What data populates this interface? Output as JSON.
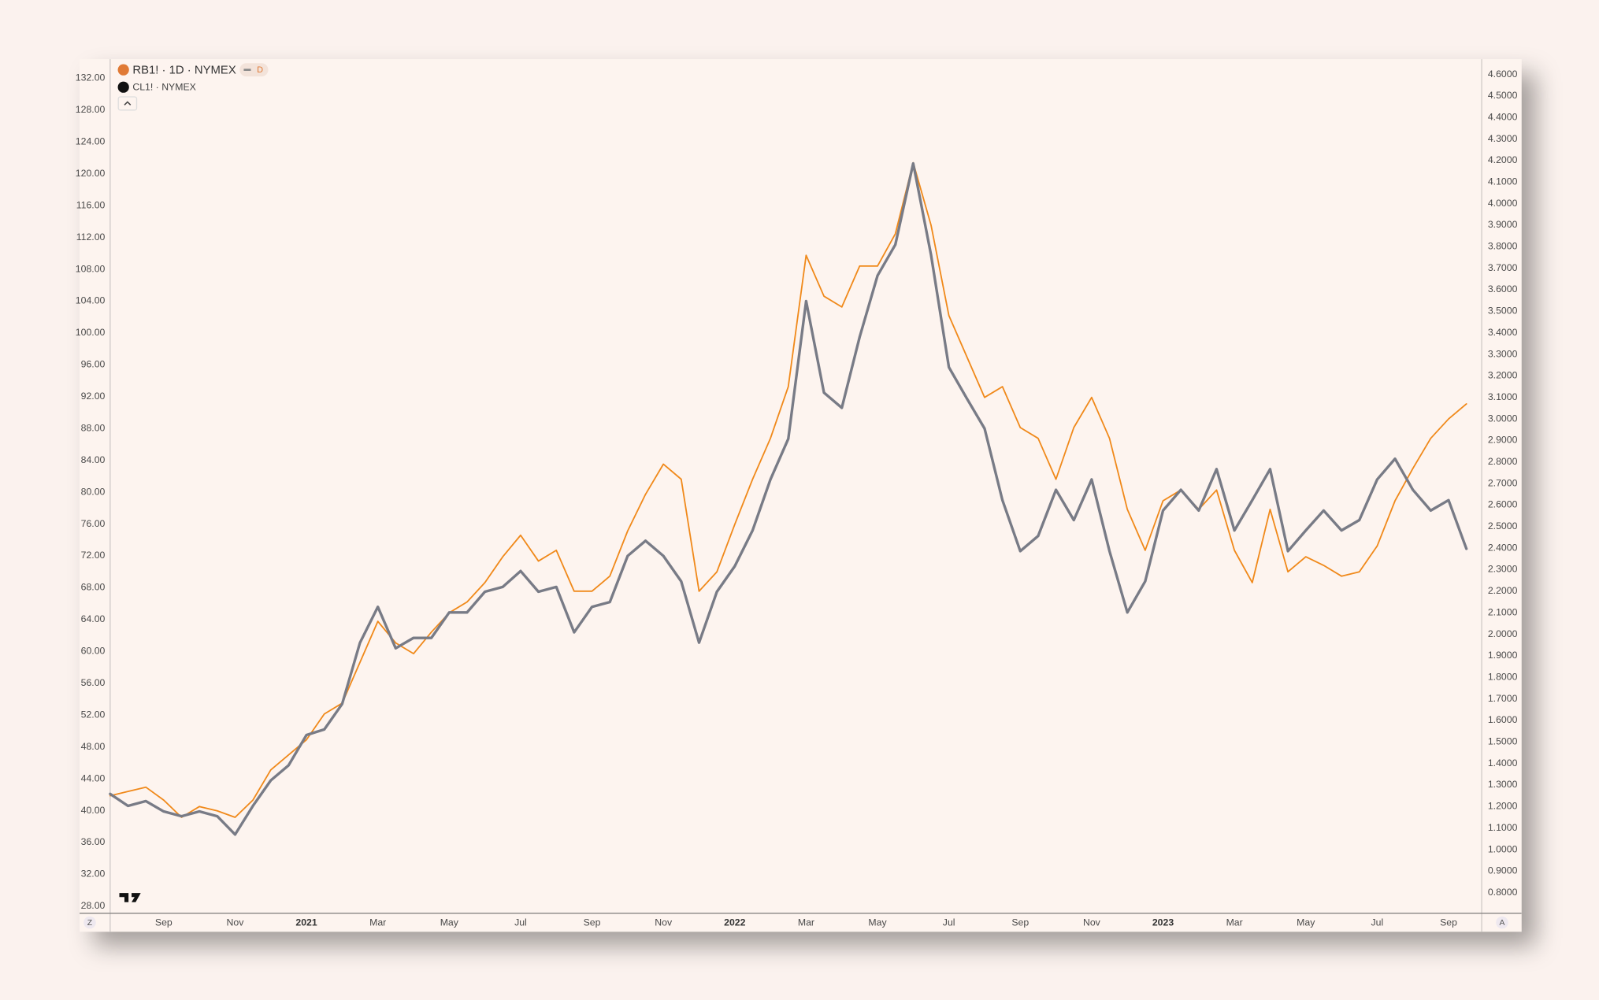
{
  "toolbar": {
    "interval_badge": "D",
    "scale_left": "Z",
    "scale_right": "A"
  },
  "chart_data": {
    "type": "line",
    "grid": false,
    "categories": [
      null,
      null,
      null,
      "Sep",
      null,
      null,
      null,
      "Nov",
      null,
      null,
      null,
      "2021",
      null,
      null,
      null,
      "Mar",
      null,
      null,
      null,
      "May",
      null,
      null,
      null,
      "Jul",
      null,
      null,
      null,
      "Sep",
      null,
      null,
      null,
      "Nov",
      null,
      null,
      null,
      "2022",
      null,
      null,
      null,
      "Mar",
      null,
      null,
      null,
      "May",
      null,
      null,
      null,
      "Jul",
      null,
      null,
      null,
      "Sep",
      null,
      null,
      null,
      "Nov",
      null,
      null,
      null,
      "2023",
      null,
      null,
      null,
      "Mar",
      null,
      null,
      null,
      "May",
      null,
      null,
      null,
      "Jul",
      null,
      null,
      null,
      "Sep",
      null
    ],
    "series": [
      {
        "name": "RB1! · 1D · NYMEX",
        "color": "#f0891a",
        "axis": "y2",
        "values": [
          1.25,
          1.27,
          1.29,
          1.23,
          1.15,
          1.2,
          1.18,
          1.15,
          1.23,
          1.37,
          1.44,
          1.51,
          1.63,
          1.68,
          1.87,
          2.06,
          1.96,
          1.91,
          2.01,
          2.1,
          2.15,
          2.24,
          2.36,
          2.46,
          2.34,
          2.39,
          2.2,
          2.2,
          2.27,
          2.48,
          2.65,
          2.79,
          2.72,
          2.2,
          2.29,
          2.51,
          2.72,
          2.91,
          3.15,
          3.76,
          3.57,
          3.52,
          3.71,
          3.71,
          3.86,
          4.19,
          3.9,
          3.48,
          3.29,
          3.1,
          3.15,
          2.96,
          2.91,
          2.72,
          2.96,
          3.1,
          2.91,
          2.58,
          2.39,
          2.62,
          2.67,
          2.58,
          2.67,
          2.39,
          2.24,
          2.58,
          2.29,
          2.36,
          2.32,
          2.27,
          2.29,
          2.41,
          2.62,
          2.77,
          2.91,
          3.0,
          3.07
        ]
      },
      {
        "name": "CL1! · NYMEX",
        "color": "#787b86",
        "values": [
          42.1,
          40.6,
          41.2,
          39.9,
          39.3,
          39.9,
          39.3,
          37.0,
          40.6,
          43.8,
          45.7,
          49.5,
          50.2,
          53.4,
          61.1,
          65.6,
          60.4,
          61.7,
          61.7,
          64.9,
          64.9,
          67.5,
          68.1,
          70.1,
          67.5,
          68.1,
          62.4,
          65.6,
          66.2,
          72.0,
          73.9,
          72.0,
          68.8,
          61.1,
          67.5,
          70.7,
          75.2,
          81.6,
          86.7,
          104.0,
          92.5,
          90.6,
          99.5,
          107.2,
          111.1,
          121.3,
          109.8,
          95.7,
          91.8,
          88.0,
          79.0,
          72.6,
          74.5,
          80.3,
          76.5,
          81.6,
          72.6,
          64.9,
          68.8,
          77.7,
          80.3,
          77.7,
          82.9,
          75.2,
          79.0,
          82.9,
          72.6,
          75.2,
          77.7,
          75.2,
          76.5,
          81.6,
          84.2,
          80.3,
          77.7,
          79.0,
          72.9
        ]
      }
    ],
    "ylim": [
      27.1,
      134.4
    ],
    "yticks": [
      {
        "value": 28,
        "label": "28.00"
      },
      {
        "value": 32,
        "label": "32.00"
      },
      {
        "value": 36,
        "label": "36.00"
      },
      {
        "value": 40,
        "label": "40.00"
      },
      {
        "value": 44,
        "label": "44.00"
      },
      {
        "value": 48,
        "label": "48.00"
      },
      {
        "value": 52,
        "label": "52.00"
      },
      {
        "value": 56,
        "label": "56.00"
      },
      {
        "value": 60,
        "label": "60.00"
      },
      {
        "value": 64,
        "label": "64.00"
      },
      {
        "value": 68,
        "label": "68.00"
      },
      {
        "value": 72,
        "label": "72.00"
      },
      {
        "value": 76,
        "label": "76.00"
      },
      {
        "value": 80,
        "label": "80.00"
      },
      {
        "value": 84,
        "label": "84.00"
      },
      {
        "value": 88,
        "label": "88.00"
      },
      {
        "value": 92,
        "label": "92.00"
      },
      {
        "value": 96,
        "label": "96.00"
      },
      {
        "value": 100,
        "label": "100.00"
      },
      {
        "value": 104,
        "label": "104.00"
      },
      {
        "value": 108,
        "label": "108.00"
      },
      {
        "value": 112,
        "label": "112.00"
      },
      {
        "value": 116,
        "label": "116.00"
      },
      {
        "value": 120,
        "label": "120.00"
      },
      {
        "value": 124,
        "label": "124.00"
      },
      {
        "value": 128,
        "label": "128.00"
      },
      {
        "value": 132,
        "label": "132.00"
      }
    ],
    "y2lim": [
      0.704,
      4.671
    ],
    "y2ticks": [
      {
        "value": 0.8,
        "label": "0.8000"
      },
      {
        "value": 0.9,
        "label": "0.9000"
      },
      {
        "value": 1.0,
        "label": "1.0000"
      },
      {
        "value": 1.1,
        "label": "1.1000"
      },
      {
        "value": 1.2,
        "label": "1.2000"
      },
      {
        "value": 1.3,
        "label": "1.3000"
      },
      {
        "value": 1.4,
        "label": "1.4000"
      },
      {
        "value": 1.5,
        "label": "1.5000"
      },
      {
        "value": 1.6,
        "label": "1.6000"
      },
      {
        "value": 1.7,
        "label": "1.7000"
      },
      {
        "value": 1.8,
        "label": "1.8000"
      },
      {
        "value": 1.9,
        "label": "1.9000"
      },
      {
        "value": 2.0,
        "label": "2.0000"
      },
      {
        "value": 2.1,
        "label": "2.1000"
      },
      {
        "value": 2.2,
        "label": "2.2000"
      },
      {
        "value": 2.3,
        "label": "2.3000"
      },
      {
        "value": 2.4,
        "label": "2.4000"
      },
      {
        "value": 2.5,
        "label": "2.5000"
      },
      {
        "value": 2.6,
        "label": "2.6000"
      },
      {
        "value": 2.7,
        "label": "2.7000"
      },
      {
        "value": 2.8,
        "label": "2.8000"
      },
      {
        "value": 2.9,
        "label": "2.9000"
      },
      {
        "value": 3.0,
        "label": "3.0000"
      },
      {
        "value": 3.1,
        "label": "3.1000"
      },
      {
        "value": 3.2,
        "label": "3.2000"
      },
      {
        "value": 3.3,
        "label": "3.3000"
      },
      {
        "value": 3.4,
        "label": "3.4000"
      },
      {
        "value": 3.5,
        "label": "3.5000"
      },
      {
        "value": 3.6,
        "label": "3.6000"
      },
      {
        "value": 3.7,
        "label": "3.7000"
      },
      {
        "value": 3.8,
        "label": "3.8000"
      },
      {
        "value": 3.9,
        "label": "3.9000"
      },
      {
        "value": 4.0,
        "label": "4.0000"
      },
      {
        "value": 4.1,
        "label": "4.1000"
      },
      {
        "value": 4.2,
        "label": "4.2000"
      },
      {
        "value": 4.3,
        "label": "4.3000"
      },
      {
        "value": 4.4,
        "label": "4.4000"
      },
      {
        "value": 4.5,
        "label": "4.5000"
      },
      {
        "value": 4.6,
        "label": "4.6000"
      }
    ]
  }
}
